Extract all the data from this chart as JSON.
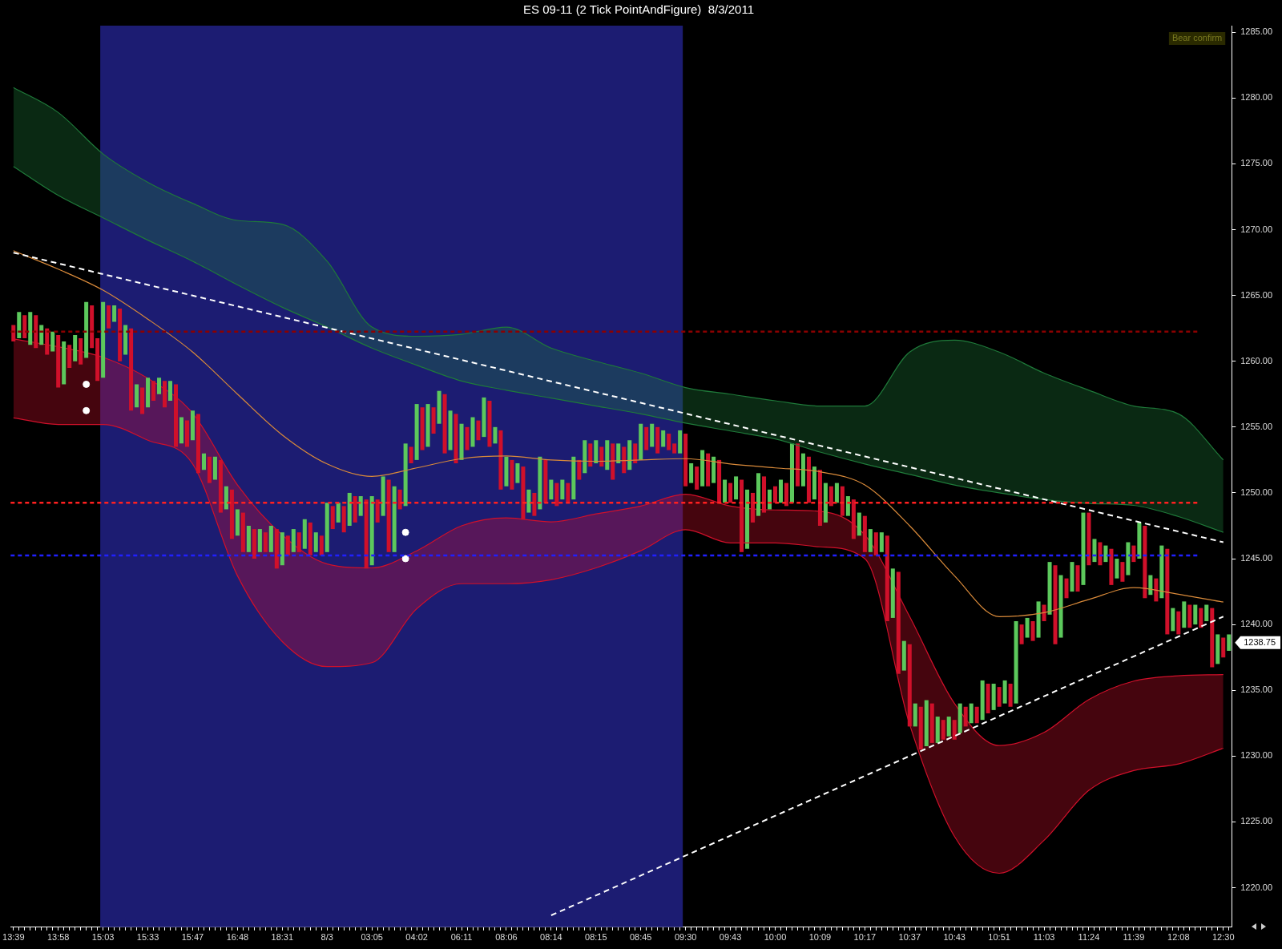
{
  "chart_data": {
    "type": "bar",
    "title": "ES 09-11 (2 Tick PointAndFigure)  8/3/2011",
    "categories": [
      "13:39",
      null,
      null,
      null,
      null,
      null,
      null,
      null,
      "13:58",
      null,
      null,
      null,
      null,
      null,
      null,
      null,
      "15:03",
      null,
      null,
      null,
      null,
      null,
      null,
      null,
      "15:33",
      null,
      null,
      null,
      null,
      null,
      null,
      null,
      "15:47",
      null,
      null,
      null,
      null,
      null,
      null,
      null,
      "16:48",
      null,
      null,
      null,
      null,
      null,
      null,
      null,
      "18:31",
      null,
      null,
      null,
      null,
      null,
      null,
      null,
      "8/3",
      null,
      null,
      null,
      null,
      null,
      null,
      null,
      "03:05",
      null,
      null,
      null,
      null,
      null,
      null,
      null,
      "04:02",
      null,
      null,
      null,
      null,
      null,
      null,
      null,
      "06:11",
      null,
      null,
      null,
      null,
      null,
      null,
      null,
      "08:06",
      null,
      null,
      null,
      null,
      null,
      null,
      null,
      "08:14",
      null,
      null,
      null,
      null,
      null,
      null,
      null,
      "08:15",
      null,
      null,
      null,
      null,
      null,
      null,
      null,
      "08:45",
      null,
      null,
      null,
      null,
      null,
      null,
      null,
      "09:30",
      null,
      null,
      null,
      null,
      null,
      null,
      null,
      "09:43",
      null,
      null,
      null,
      null,
      null,
      null,
      null,
      "10:00",
      null,
      null,
      null,
      null,
      null,
      null,
      null,
      "10:09",
      null,
      null,
      null,
      null,
      null,
      null,
      null,
      "10:17",
      null,
      null,
      null,
      null,
      null,
      null,
      null,
      "10:37",
      null,
      null,
      null,
      null,
      null,
      null,
      null,
      "10:43",
      null,
      null,
      null,
      null,
      null,
      null,
      null,
      "10:51",
      null,
      null,
      null,
      null,
      null,
      null,
      null,
      "11:03",
      null,
      null,
      null,
      null,
      null,
      null,
      null,
      "11:24",
      null,
      null,
      null,
      null,
      null,
      null,
      null,
      "11:39",
      null,
      null,
      null,
      null,
      null,
      null,
      null,
      "12:08",
      null,
      null,
      null,
      null,
      null,
      null,
      null,
      "12:30",
      null
    ],
    "series": [
      {
        "base": [
          1261.5,
          1261.75,
          1261.75,
          1261.25,
          1261,
          1261.25,
          1260.5,
          1260.75,
          1258,
          1258.25,
          1259.5,
          1260,
          1259.75,
          1260.25,
          1261,
          1258.5,
          1258.75,
          1262.5,
          1263,
          1260,
          1260.5,
          1256.25,
          1256.5,
          1256,
          1256.5,
          1257,
          1257.5,
          1256.5,
          1257,
          1253.5,
          1253.75,
          1253.5,
          1254,
          1251.5,
          1251.75,
          1250.75,
          1251,
          1248.5,
          1248.75,
          1246.5,
          1246.75,
          1245.5,
          1245.5,
          1245,
          1245.5,
          1245.5,
          1245.5,
          1244.25,
          1244.5,
          1245.25,
          1245.5,
          1245.5,
          1245.75,
          1245.25,
          1245.5,
          1245.25,
          1245.5,
          1247.25,
          1247.75,
          1247,
          1247.5,
          1247.75,
          1248.25,
          1244.25,
          1244.5,
          1247.75,
          1248.25,
          1245.5,
          1245.5,
          1248.75,
          1249,
          1252.25,
          1252.5,
          1253.25,
          1253.5,
          1254.5,
          1255.25,
          1253,
          1253.25,
          1252.25,
          1252.5,
          1253.25,
          1253.5,
          1254,
          1254.25,
          1253.5,
          1253.75,
          1250.25,
          1250.5,
          1250.25,
          1250.75,
          1248,
          1248.5,
          1248.25,
          1248.75,
          1249.25,
          1249.5,
          1249,
          1249.5,
          1249.25,
          1249.5,
          1251,
          1251.5,
          1252,
          1252.25,
          1252,
          1251.75,
          1251,
          1252.25,
          1251.5,
          1251.75,
          1252.25,
          1252.5,
          1253.25,
          1253.5,
          1253,
          1253.5,
          1253.25,
          1253,
          1253,
          1250.5,
          1250.75,
          1250.25,
          1250.5,
          1250.5,
          1250.75,
          1249.25,
          1249.25,
          1249.25,
          1249.5,
          1245.5,
          1245.75,
          1247.75,
          1248.25,
          1248.5,
          1248.75,
          1249.25,
          1249.25,
          1249,
          1249.25,
          1250.5,
          1250.5,
          1249.25,
          1249.5,
          1247.5,
          1247.75,
          1249,
          1249.25,
          1248.25,
          1248.25,
          1246.5,
          1246.75,
          1245.5,
          1245.5,
          1245.25,
          1245.5,
          1240.25,
          1240.5,
          1236.25,
          1236.5,
          1232.25,
          1232.25,
          1230.5,
          1230.75,
          1231,
          1231,
          1231.25,
          1231.5,
          1231.25,
          1231.75,
          1232.25,
          1232.5,
          1232.5,
          1232.75,
          1233.25,
          1233.5,
          1233.75,
          1234,
          1233.75,
          1234,
          1238.5,
          1239,
          1238.75,
          1239,
          1240.25,
          1240.75,
          1238.5,
          1239,
          1242,
          1242.5,
          1242.5,
          1243,
          1244.5,
          1244.75,
          1244.5,
          1244.75,
          1243,
          1243.5,
          1243.25,
          1243.75,
          1244.75,
          1245,
          1242,
          1242.25,
          1241.75,
          1242,
          1239.25,
          1239.5,
          1239.25,
          1239.75,
          1239.75,
          1240,
          1239.75,
          1240.25,
          1236.75,
          1237,
          1237.5,
          1238
        ],
        "values": [
          1.25,
          2,
          1.75,
          2.5,
          2.5,
          1.5,
          2,
          1.5,
          4,
          3.25,
          1.75,
          2,
          2,
          4.25,
          3.25,
          3.25,
          5.75,
          1.75,
          1.25,
          4,
          2.25,
          6.25,
          1.75,
          2,
          2.25,
          1.5,
          1.25,
          2,
          1.5,
          4.75,
          2,
          2,
          2.25,
          4.5,
          1.25,
          2,
          1.75,
          4,
          1.75,
          3.75,
          2,
          3,
          2,
          2.25,
          1.75,
          1.5,
          2,
          3,
          2.5,
          1.5,
          1.75,
          1.5,
          2.25,
          2.5,
          1.5,
          1.5,
          3.75,
          1.75,
          1.5,
          2,
          2.5,
          2,
          1.5,
          5.25,
          5.25,
          1.75,
          3,
          5.5,
          5,
          1.5,
          4.75,
          1.25,
          4.25,
          3.25,
          3.25,
          2,
          2.5,
          4.5,
          3,
          3.75,
          2.75,
          1.75,
          2.25,
          1.5,
          3,
          3.5,
          1.25,
          4.5,
          2.25,
          2.25,
          1.5,
          4,
          1.75,
          1.75,
          4,
          3.25,
          1.5,
          1.75,
          1.5,
          1.5,
          3.25,
          1.5,
          2.5,
          1.75,
          1.75,
          1.5,
          2.25,
          2.75,
          1.5,
          2,
          2.25,
          1.5,
          2.75,
          1.75,
          1.75,
          2,
          1.25,
          1.25,
          0.75,
          1.75,
          4,
          1.5,
          1.75,
          2.75,
          2.5,
          2,
          3.25,
          1.75,
          1.5,
          1.75,
          5.5,
          4.5,
          2.25,
          3.25,
          2.75,
          1.5,
          1.25,
          1.75,
          1.75,
          4.5,
          3.25,
          2.5,
          3.5,
          2.5,
          4.25,
          3,
          1.5,
          1.5,
          2.25,
          1.5,
          3,
          1.75,
          2.75,
          1.75,
          1.75,
          1.5,
          6.5,
          3.75,
          7.75,
          2.25,
          6.25,
          1.75,
          3.25,
          3.5,
          3,
          2,
          1.5,
          1.5,
          1.5,
          2.25,
          1.5,
          1.5,
          1.25,
          3,
          2.25,
          2,
          1.5,
          1.75,
          1.75,
          6.25,
          1.5,
          1.5,
          1.5,
          2.75,
          1.25,
          4,
          6,
          4.75,
          1.5,
          2.25,
          2,
          5.5,
          4,
          1.75,
          1.75,
          1.25,
          2.75,
          1.5,
          1.5,
          2.5,
          1.25,
          2.75,
          5.5,
          1.5,
          1.75,
          4,
          6.5,
          1.75,
          1.75,
          2,
          1.75,
          1.5,
          1.5,
          1.25,
          4.5,
          2.25,
          1.5,
          1.25
        ],
        "colors": [
          "#d0102a",
          "#5cc85c",
          "#d0102a",
          "#5cc85c",
          "#d0102a",
          "#5cc85c",
          "#d0102a",
          "#5cc85c",
          "#d0102a",
          "#5cc85c",
          "#d0102a",
          "#5cc85c",
          "#d0102a",
          "#5cc85c",
          "#d0102a",
          "#d0102a",
          "#5cc85c",
          "#d0102a",
          "#5cc85c",
          "#d0102a",
          "#5cc85c",
          "#d0102a",
          "#5cc85c",
          "#d0102a",
          "#5cc85c",
          "#d0102a",
          "#5cc85c",
          "#d0102a",
          "#5cc85c",
          "#d0102a",
          "#5cc85c",
          "#d0102a",
          "#5cc85c",
          "#d0102a",
          "#5cc85c",
          "#d0102a",
          "#5cc85c",
          "#d0102a",
          "#5cc85c",
          "#d0102a",
          "#5cc85c",
          "#d0102a",
          "#5cc85c",
          "#d0102a",
          "#5cc85c",
          "#d0102a",
          "#5cc85c",
          "#d0102a",
          "#5cc85c",
          "#d0102a",
          "#5cc85c",
          "#d0102a",
          "#5cc85c",
          "#d0102a",
          "#5cc85c",
          "#d0102a",
          "#5cc85c",
          "#d0102a",
          "#5cc85c",
          "#d0102a",
          "#5cc85c",
          "#d0102a",
          "#5cc85c",
          "#d0102a",
          "#5cc85c",
          "#d0102a",
          "#5cc85c",
          "#d0102a",
          "#5cc85c",
          "#d0102a",
          "#5cc85c",
          "#d0102a",
          "#5cc85c",
          "#d0102a",
          "#5cc85c",
          "#d0102a",
          "#5cc85c",
          "#d0102a",
          "#5cc85c",
          "#d0102a",
          "#5cc85c",
          "#d0102a",
          "#5cc85c",
          "#d0102a",
          "#5cc85c",
          "#d0102a",
          "#5cc85c",
          "#d0102a",
          "#5cc85c",
          "#d0102a",
          "#5cc85c",
          "#d0102a",
          "#5cc85c",
          "#d0102a",
          "#5cc85c",
          "#d0102a",
          "#5cc85c",
          "#d0102a",
          "#5cc85c",
          "#d0102a",
          "#5cc85c",
          "#d0102a",
          "#5cc85c",
          "#d0102a",
          "#5cc85c",
          "#d0102a",
          "#5cc85c",
          "#d0102a",
          "#5cc85c",
          "#d0102a",
          "#5cc85c",
          "#d0102a",
          "#5cc85c",
          "#d0102a",
          "#5cc85c",
          "#d0102a",
          "#5cc85c",
          "#d0102a",
          "#d0102a",
          "#5cc85c",
          "#d0102a",
          "#5cc85c",
          "#d0102a",
          "#5cc85c",
          "#d0102a",
          "#5cc85c",
          "#d0102a",
          "#5cc85c",
          "#d0102a",
          "#5cc85c",
          "#d0102a",
          "#5cc85c",
          "#d0102a",
          "#5cc85c",
          "#d0102a",
          "#5cc85c",
          "#d0102a",
          "#5cc85c",
          "#d0102a",
          "#5cc85c",
          "#d0102a",
          "#5cc85c",
          "#d0102a",
          "#5cc85c",
          "#d0102a",
          "#5cc85c",
          "#d0102a",
          "#5cc85c",
          "#d0102a",
          "#5cc85c",
          "#d0102a",
          "#5cc85c",
          "#d0102a",
          "#5cc85c",
          "#d0102a",
          "#5cc85c",
          "#d0102a",
          "#5cc85c",
          "#d0102a",
          "#5cc85c",
          "#d0102a",
          "#5cc85c",
          "#d0102a",
          "#5cc85c",
          "#d0102a",
          "#5cc85c",
          "#d0102a",
          "#5cc85c",
          "#d0102a",
          "#5cc85c",
          "#d0102a",
          "#5cc85c",
          "#d0102a",
          "#5cc85c",
          "#d0102a",
          "#5cc85c",
          "#d0102a",
          "#5cc85c",
          "#d0102a",
          "#5cc85c",
          "#d0102a",
          "#5cc85c",
          "#d0102a",
          "#5cc85c",
          "#d0102a",
          "#5cc85c",
          "#d0102a",
          "#5cc85c",
          "#d0102a",
          "#5cc85c",
          "#d0102a",
          "#5cc85c",
          "#d0102a",
          "#5cc85c",
          "#d0102a",
          "#5cc85c",
          "#d0102a",
          "#5cc85c",
          "#d0102a",
          "#5cc85c",
          "#d0102a",
          "#5cc85c",
          "#d0102a",
          "#5cc85c",
          "#d0102a",
          "#5cc85c",
          "#d0102a",
          "#5cc85c",
          "#d0102a",
          "#5cc85c",
          "#d0102a",
          "#5cc85c",
          "#d0102a",
          "#5cc85c",
          "#d0102a",
          "#5cc85c",
          "#d0102a",
          "#5cc85c"
        ]
      },
      {
        "type": "area",
        "color": "#1f7a3a",
        "x": [
          "13:39",
          "13:58",
          "15:03",
          "15:33",
          "15:47",
          "16:48",
          "18:31",
          "8/3",
          "03:05",
          "04:02",
          "06:11",
          "08:06",
          "08:14",
          "08:15",
          "08:45",
          "09:30",
          "09:43",
          "10:00",
          "10:09",
          "10:17",
          "10:37",
          "10:43",
          "10:51",
          "11:03",
          "11:24",
          "11:39",
          "12:08",
          "12:30"
        ],
        "values": [
          1280.8,
          1278.9,
          1275.75,
          1273.6,
          1272,
          1270.7,
          1270.4,
          1267.6,
          1262.6,
          1261.9,
          1262.05,
          1262.6,
          1261,
          1260,
          1259.1,
          1258,
          1257.5,
          1257,
          1256.6,
          1256.6,
          1260.7,
          1261.6,
          1260.7,
          1259.1,
          1257.8,
          1256.6,
          1256,
          1252.5
        ]
      },
      {
        "type": "line",
        "color": "#1f7a3a",
        "x": [
          "13:39",
          "13:58",
          "15:03",
          "15:33",
          "15:47",
          "16:48",
          "18:31",
          "8/3",
          "03:05",
          "04:02",
          "06:11",
          "08:06",
          "08:14",
          "08:15",
          "08:45",
          "09:30",
          "09:43",
          "10:00",
          "10:09",
          "10:17",
          "10:37",
          "10:43",
          "10:51",
          "11:03",
          "11:24",
          "11:39",
          "12:08",
          "12:30"
        ],
        "values": [
          1274.8,
          1272.6,
          1270.9,
          1269.2,
          1267.6,
          1265.8,
          1264.1,
          1262.6,
          1261,
          1259.7,
          1258.5,
          1257.8,
          1257.2,
          1256.6,
          1256,
          1255.3,
          1254.7,
          1254.1,
          1253.1,
          1252.2,
          1251.4,
          1250.6,
          1250,
          1249.5,
          1249.2,
          1249.05,
          1248.2,
          1247
        ]
      },
      {
        "type": "area",
        "color": "#d0102a",
        "x": [
          "13:39",
          "13:58",
          "15:03",
          "15:33",
          "15:47",
          "16:48",
          "18:31",
          "8/3",
          "03:05",
          "04:02",
          "06:11",
          "08:06",
          "08:14",
          "08:15",
          "08:45",
          "09:30",
          "09:43",
          "10:00",
          "10:09",
          "10:17",
          "10:37",
          "10:43",
          "10:51",
          "11:03",
          "11:24",
          "11:39",
          "12:08",
          "12:30"
        ],
        "values": [
          1261.7,
          1261.1,
          1260.3,
          1258.7,
          1256.05,
          1250.6,
          1246.8,
          1244.6,
          1244.3,
          1245.6,
          1247.5,
          1248.1,
          1247.8,
          1248.4,
          1249,
          1249.9,
          1249,
          1248.7,
          1248.6,
          1246.8,
          1240.6,
          1234,
          1230.8,
          1231.8,
          1234.3,
          1235.7,
          1236.1,
          1236.2
        ]
      },
      {
        "type": "line",
        "color": "#d0102a",
        "x": [
          "13:39",
          "13:58",
          "15:03",
          "15:33",
          "15:47",
          "16:48",
          "18:31",
          "8/3",
          "03:05",
          "04:02",
          "06:11",
          "08:06",
          "08:14",
          "08:15",
          "08:45",
          "09:30",
          "09:43",
          "10:00",
          "10:09",
          "10:17",
          "10:37",
          "10:43",
          "10:51",
          "11:03",
          "11:24",
          "11:39",
          "12:08",
          "12:30"
        ],
        "values": [
          1255.7,
          1255.2,
          1255.2,
          1254,
          1252.2,
          1243.7,
          1238.7,
          1236.8,
          1237.1,
          1241.2,
          1243.1,
          1243.1,
          1243.4,
          1244.3,
          1245.6,
          1247.2,
          1246.2,
          1246.2,
          1245.9,
          1245,
          1232.4,
          1223.9,
          1221.1,
          1223.6,
          1227.4,
          1228.9,
          1229.4,
          1230.6
        ]
      },
      {
        "type": "line",
        "color": "#d98a3a",
        "x": [
          "13:39",
          "13:58",
          "15:03",
          "15:33",
          "15:47",
          "16:48",
          "18:31",
          "8/3",
          "03:05",
          "04:02",
          "06:11",
          "08:06",
          "08:14",
          "08:15",
          "08:45",
          "09:30",
          "09:43",
          "10:00",
          "10:09",
          "10:17",
          "10:37",
          "10:43",
          "10:51",
          "11:03",
          "11:24",
          "11:39",
          "12:08",
          "12:30"
        ],
        "values": [
          1268.4,
          1267,
          1265.4,
          1263.2,
          1260.7,
          1257.5,
          1254.4,
          1252.2,
          1251.25,
          1251.9,
          1252.6,
          1252.8,
          1252.5,
          1252.4,
          1252.5,
          1252.6,
          1252.2,
          1251.9,
          1251.6,
          1250.6,
          1247.5,
          1243.7,
          1240.6,
          1240.9,
          1241.9,
          1242.8,
          1242.3,
          1241.7
        ]
      },
      {
        "type": "line",
        "color": "#ffffff",
        "line_style": "dashed",
        "x": [
          "13:39",
          "12:30"
        ],
        "values": [
          1268.25,
          1246.25
        ]
      },
      {
        "type": "line",
        "color": "#ffffff",
        "line_style": "dashed",
        "x": [
          "08:14",
          "12:30"
        ],
        "values": [
          1217.9,
          1240.6
        ]
      },
      {
        "type": "scatter",
        "color": "#ffffff",
        "marker": "circle",
        "values": [
          null,
          null,
          null,
          null,
          null,
          null,
          null,
          null,
          null,
          null,
          null,
          null,
          null,
          1258.25,
          null,
          null,
          null,
          null,
          null,
          null,
          null,
          null,
          null,
          null,
          null,
          null,
          null,
          null,
          null,
          null,
          null,
          null,
          null,
          null,
          null,
          null,
          null,
          null,
          null,
          null,
          null,
          null,
          null,
          null,
          null,
          null,
          null,
          null,
          null,
          null,
          null,
          null,
          null,
          null,
          null,
          null,
          null,
          null,
          null,
          null,
          null,
          null,
          null,
          null,
          null,
          null,
          null,
          null,
          null,
          null,
          1247,
          null,
          null,
          null,
          null,
          null,
          null,
          null,
          null,
          null,
          null,
          null,
          null,
          null,
          null,
          null,
          null,
          null,
          null,
          null,
          null,
          null,
          null,
          null,
          null,
          null,
          null,
          null,
          null,
          null,
          null,
          null,
          null,
          null,
          null,
          null,
          null,
          null,
          null,
          null,
          null,
          null,
          null,
          null,
          null,
          null,
          null,
          null,
          null,
          null,
          null,
          null,
          null,
          null,
          null,
          null,
          null,
          null,
          null,
          null,
          null,
          null,
          null,
          null,
          null,
          null,
          null,
          null,
          null,
          null,
          null,
          null,
          null,
          null,
          null,
          null,
          null,
          null,
          null,
          null,
          null,
          null,
          null,
          null,
          null,
          null,
          null,
          null,
          null,
          null,
          null,
          null,
          null,
          null,
          null,
          null,
          null,
          null,
          null,
          null,
          null,
          null,
          null,
          null,
          null,
          null,
          null,
          null,
          null,
          null,
          null,
          null,
          null,
          null,
          null,
          null,
          null,
          null,
          null,
          null,
          null,
          null,
          null,
          null,
          null,
          null,
          null,
          null,
          null,
          null,
          null,
          null,
          null,
          null,
          null,
          null,
          null,
          null,
          null,
          null,
          null,
          null,
          null,
          null,
          null,
          null,
          null,
          null
        ]
      },
      {
        "type": "scatter",
        "color": "#ffffff",
        "marker": "circle",
        "values": [
          null,
          null,
          null,
          null,
          null,
          null,
          null,
          null,
          null,
          null,
          null,
          null,
          null,
          1256.25,
          null,
          null,
          null,
          null,
          null,
          null,
          null,
          null,
          null,
          null,
          null,
          null,
          null,
          null,
          null,
          null,
          null,
          null,
          null,
          null,
          null,
          null,
          null,
          null,
          null,
          null,
          null,
          null,
          null,
          null,
          null,
          null,
          null,
          null,
          null,
          null,
          null,
          null,
          null,
          null,
          null,
          null,
          null,
          null,
          null,
          null,
          null,
          null,
          null,
          null,
          null,
          null,
          null,
          null,
          null,
          null,
          1245,
          null,
          null,
          null,
          null,
          null,
          null,
          null,
          null,
          null,
          null,
          null,
          null,
          null,
          null,
          null,
          null,
          null,
          null,
          null,
          null,
          null,
          null,
          null,
          null,
          null,
          null,
          null,
          null,
          null,
          null,
          null,
          null,
          null,
          null,
          null,
          null,
          null,
          null,
          null,
          null,
          null,
          null,
          null,
          null,
          null,
          null,
          null,
          null,
          null,
          null,
          null,
          null,
          null,
          null,
          null,
          null,
          null,
          null,
          null,
          null,
          null,
          null,
          null,
          null,
          null,
          null,
          null,
          null,
          null,
          null,
          null,
          null,
          null,
          null,
          null,
          null,
          null,
          null,
          null,
          null,
          null,
          null,
          null,
          null,
          null,
          null,
          null,
          null,
          null,
          null,
          null,
          null,
          null,
          null,
          null,
          null,
          null,
          null,
          null,
          null,
          null,
          null,
          null,
          null,
          null,
          null,
          null,
          null,
          null,
          null,
          null,
          null,
          null,
          null,
          null,
          null,
          null,
          null,
          null,
          null,
          null,
          null,
          null,
          null,
          null,
          null,
          null,
          null,
          null,
          null,
          null,
          null,
          null,
          null,
          null,
          null,
          null,
          null,
          null,
          null,
          null,
          null,
          null,
          null,
          null,
          null,
          null
        ]
      }
    ],
    "ylim": [
      1217,
      1285.5
    ],
    "yticks": [
      {
        "value": 1220,
        "label": "1220.00"
      },
      {
        "value": 1225,
        "label": "1225.00"
      },
      {
        "value": 1230,
        "label": "1230.00"
      },
      {
        "value": 1235,
        "label": "1235.00"
      },
      {
        "value": 1240,
        "label": "1240.00"
      },
      {
        "value": 1245,
        "label": "1245.00"
      },
      {
        "value": 1250,
        "label": "1250.00"
      },
      {
        "value": 1255,
        "label": "1255.00"
      },
      {
        "value": 1260,
        "label": "1260.00"
      },
      {
        "value": 1265,
        "label": "1265.00"
      },
      {
        "value": 1270,
        "label": "1270.00"
      },
      {
        "value": 1275,
        "label": "1275.00"
      },
      {
        "value": 1280,
        "label": "1280.00"
      },
      {
        "value": 1285,
        "label": "1285.00"
      }
    ],
    "ref_lines": [
      {
        "axis": "y",
        "value": 1262.25,
        "color": "#8b0000",
        "line_style": "dashed"
      },
      {
        "axis": "y",
        "value": 1249.25,
        "color": "#ff2020",
        "line_style": "dashed"
      },
      {
        "axis": "y",
        "value": 1245.25,
        "color": "#2020ff",
        "line_style": "dashed"
      }
    ],
    "bands": [
      {
        "axis": "x",
        "from": "15:03",
        "to": "09:30",
        "color": "#1c1c72"
      }
    ],
    "annotations": [
      "Bear confirm",
      "1238.75"
    ]
  }
}
